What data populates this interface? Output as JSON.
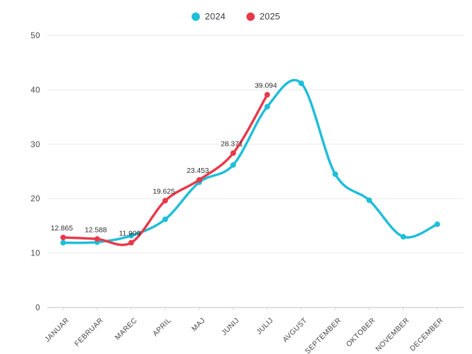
{
  "legend": {
    "items": [
      {
        "label": "2024",
        "color": "#1ebed9"
      },
      {
        "label": "2025",
        "color": "#e8394a"
      }
    ]
  },
  "chart_data": {
    "type": "line",
    "title": "",
    "xlabel": "",
    "ylabel": "",
    "categories": [
      "JANUAR",
      "FEBRUAR",
      "MAREC",
      "APRIL",
      "MAJ",
      "JUNIJ",
      "JULIJ",
      "AVGUST",
      "SEPTEMBER",
      "OKTOBER",
      "NOVEMBER",
      "DECEMBER"
    ],
    "series": [
      {
        "name": "2024",
        "color": "#1ebed9",
        "values": [
          11.9,
          12.0,
          13.2,
          16.2,
          23.0,
          26.2,
          36.9,
          41.2,
          24.5,
          19.7,
          13.0,
          15.3
        ]
      },
      {
        "name": "2025",
        "color": "#e8394a",
        "values": [
          12.865,
          12.588,
          11.909,
          19.625,
          23.453,
          28.371,
          39.094
        ],
        "point_labels": [
          "12.865",
          "12.588",
          "11.909",
          "19.625",
          "23.453",
          "28.371",
          "39.094"
        ]
      }
    ],
    "ylim": [
      0,
      50
    ],
    "yticks": [
      0,
      10,
      20,
      30,
      40,
      50
    ],
    "grid": true,
    "legend_position": "top-center",
    "colors": {
      "grid_line": "#eaeaea",
      "zero_line": "#c2c2c2",
      "tick_text": "#454545",
      "point_label_text": "#2e2e2e"
    }
  }
}
